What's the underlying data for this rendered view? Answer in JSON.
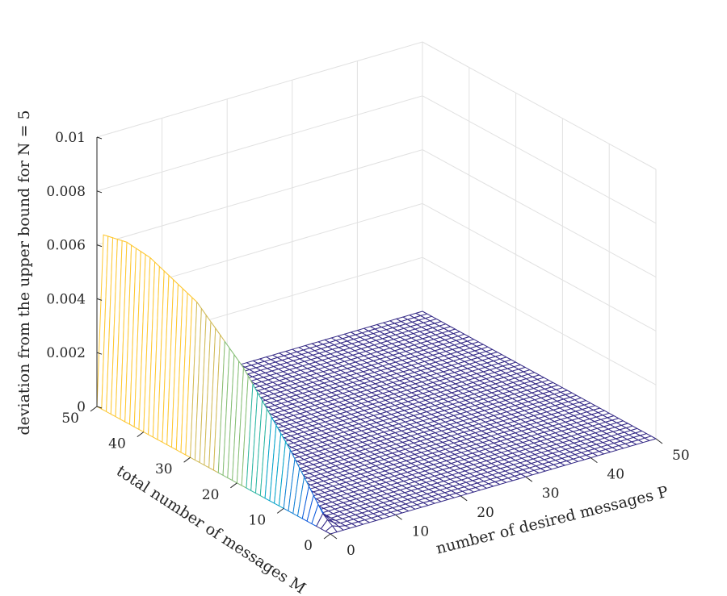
{
  "chart_data": {
    "type": "surface",
    "title": "",
    "xlabel": "number of desired messages P",
    "ylabel": "total number of messages M",
    "zlabel": "deviation from the upper bound for N = 5",
    "xlim": [
      0,
      50
    ],
    "ylim": [
      0,
      50
    ],
    "zlim": [
      0,
      0.01
    ],
    "x_ticks": [
      "0",
      "10",
      "20",
      "30",
      "40",
      "50"
    ],
    "y_ticks": [
      "0",
      "10",
      "20",
      "30",
      "40",
      "50"
    ],
    "z_ticks": [
      "0",
      "0.002",
      "0.004",
      "0.006",
      "0.008",
      "0.01"
    ],
    "grid": true,
    "grid_step": 1,
    "colormap": [
      "#352a87",
      "#0f5cdd",
      "#1481d6",
      "#06a4ca",
      "#2eb7a4",
      "#87bf77",
      "#d1bb59",
      "#fec832",
      "#f9fb0e"
    ],
    "peak": {
      "P": 1,
      "M": 45,
      "value": 0.0065
    },
    "nonzero_region": "P <= 2",
    "ridge_P1": [
      {
        "M": 3,
        "z": 0.0004
      },
      {
        "M": 10,
        "z": 0.0021
      },
      {
        "M": 20,
        "z": 0.0042
      },
      {
        "M": 30,
        "z": 0.0057
      },
      {
        "M": 40,
        "z": 0.0064
      },
      {
        "M": 45,
        "z": 0.0065
      },
      {
        "M": 50,
        "z": 0.0063
      }
    ],
    "ridge_P2": [
      {
        "M": 5,
        "z": 0.0002
      },
      {
        "M": 10,
        "z": 0.0005
      },
      {
        "M": 20,
        "z": 0.0009
      },
      {
        "M": 30,
        "z": 0.0012
      },
      {
        "M": 40,
        "z": 0.0016
      },
      {
        "M": 50,
        "z": 0.0018
      }
    ]
  }
}
